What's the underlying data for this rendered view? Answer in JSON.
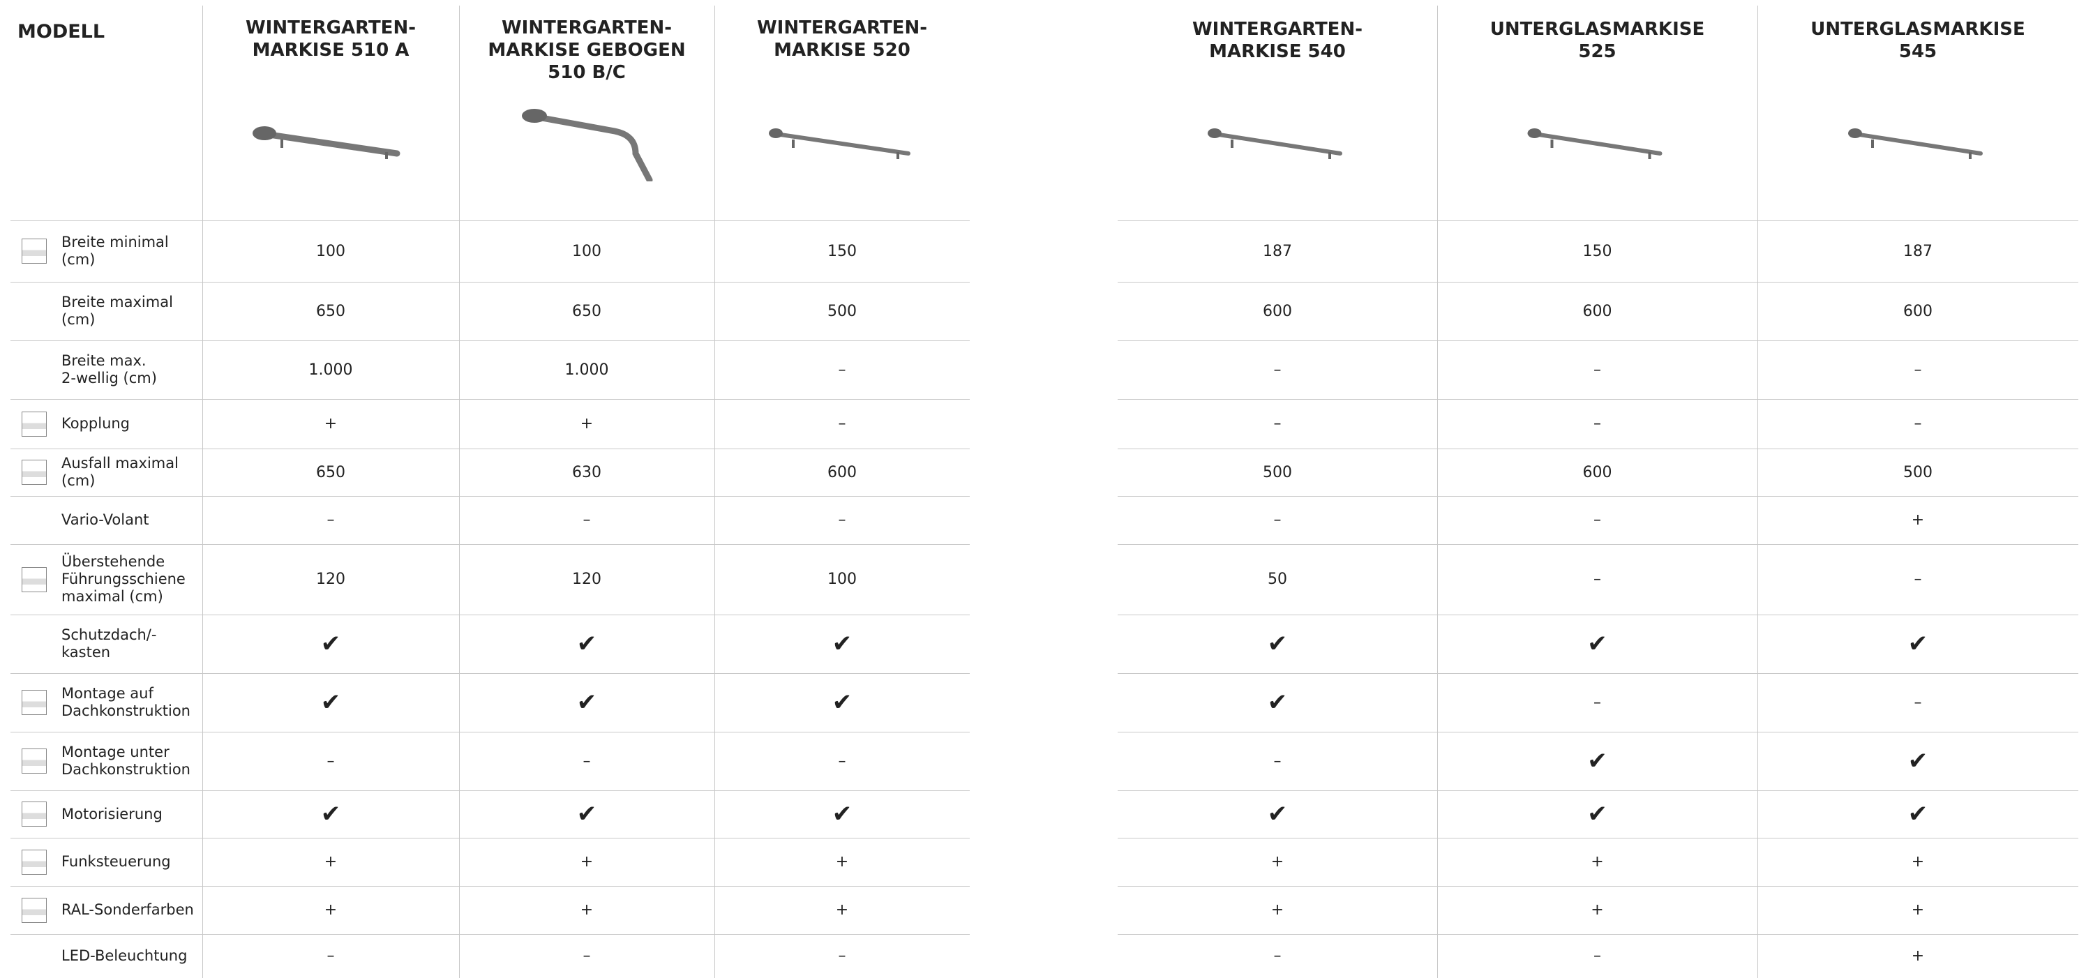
{
  "header": {
    "title": "MODELL"
  },
  "products": [
    {
      "name": "WINTERGARTEN-\nMARKISE 510 A"
    },
    {
      "name": "WINTERGARTEN-\nMARKISE GEBOGEN\n510 B/C"
    },
    {
      "name": "WINTERGARTEN-\nMARKISE 520"
    },
    {
      "name": "WINTERGARTEN-\nMARKISE 540"
    },
    {
      "name": "UNTERGLASMARKISE\n525"
    },
    {
      "name": "UNTERGLASMARKISE\n545"
    }
  ],
  "table": {
    "rows": [
      {
        "label": "Breite minimal\n(cm)",
        "values": [
          "100",
          "100",
          "150",
          "187",
          "150",
          "187"
        ]
      },
      {
        "label": "Breite maximal\n(cm)",
        "values": [
          "650",
          "650",
          "500",
          "600",
          "600",
          "600"
        ]
      },
      {
        "label": "Breite max.\n2-wellig (cm)",
        "values": [
          "1.000",
          "1.000",
          "–",
          "–",
          "–",
          "–"
        ]
      },
      {
        "label": "Kopplung",
        "values": [
          "+",
          "+",
          "–",
          "–",
          "–",
          "–"
        ]
      },
      {
        "label": "Ausfall maximal (cm)",
        "values": [
          "650",
          "630",
          "600",
          "500",
          "600",
          "500"
        ]
      },
      {
        "label": "Vario-Volant",
        "values": [
          "–",
          "–",
          "–",
          "–",
          "–",
          "+"
        ]
      },
      {
        "label": "Überstehende\nFührungsschiene\nmaximal (cm)",
        "values": [
          "120",
          "120",
          "100",
          "50",
          "–",
          "–"
        ]
      },
      {
        "label": "Schutzdach/-\nkasten",
        "values": [
          "✔",
          "✔",
          "✔",
          "✔",
          "✔",
          "✔"
        ]
      },
      {
        "label": "Montage auf\nDachkonstruktion",
        "values": [
          "✔",
          "✔",
          "✔",
          "✔",
          "–",
          "–"
        ]
      },
      {
        "label": "Montage unter\nDachkonstruktion",
        "values": [
          "–",
          "–",
          "–",
          "–",
          "✔",
          "✔"
        ]
      },
      {
        "label": "Motorisierung",
        "values": [
          "✔",
          "✔",
          "✔",
          "✔",
          "✔",
          "✔"
        ]
      },
      {
        "label": "Funksteuerung",
        "values": [
          "+",
          "+",
          "+",
          "+",
          "+",
          "+"
        ]
      },
      {
        "label": "RAL-Sonderfarben",
        "values": [
          "+",
          "+",
          "+",
          "+",
          "+",
          "+"
        ]
      },
      {
        "label": "LED-Beleuchtung",
        "values": [
          "–",
          "–",
          "–",
          "–",
          "–",
          "+"
        ]
      }
    ]
  }
}
